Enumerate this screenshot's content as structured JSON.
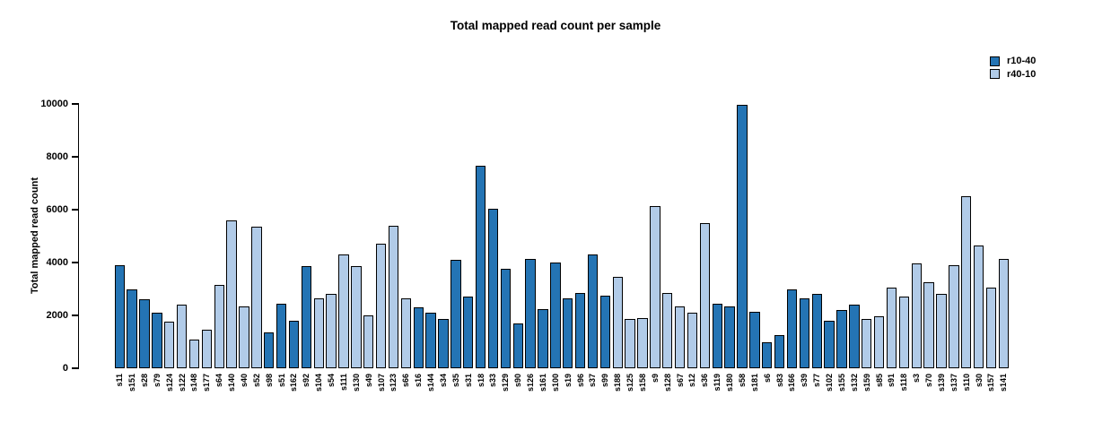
{
  "chart_data": {
    "type": "bar",
    "title": "Total mapped read count per sample",
    "xlabel": "",
    "ylabel": "Total mapped read count",
    "ylim": [
      0,
      10000
    ],
    "y_ticks": [
      0,
      2000,
      4000,
      6000,
      8000,
      10000
    ],
    "grid": false,
    "legend_position": "top-right",
    "legend": [
      {
        "label": "r10-40",
        "color": "#2474b4"
      },
      {
        "label": "r40-10",
        "color": "#b1cbe8"
      }
    ],
    "samples": [
      {
        "id": "s11",
        "group": "r10-40",
        "value": 3900
      },
      {
        "id": "s151",
        "group": "r10-40",
        "value": 3000
      },
      {
        "id": "s28",
        "group": "r10-40",
        "value": 2600
      },
      {
        "id": "s79",
        "group": "r10-40",
        "value": 2100
      },
      {
        "id": "s124",
        "group": "r40-10",
        "value": 1750
      },
      {
        "id": "s122",
        "group": "r40-10",
        "value": 2400
      },
      {
        "id": "s148",
        "group": "r40-10",
        "value": 1100
      },
      {
        "id": "s177",
        "group": "r40-10",
        "value": 1450
      },
      {
        "id": "s64",
        "group": "r40-10",
        "value": 3150
      },
      {
        "id": "s140",
        "group": "r40-10",
        "value": 5600
      },
      {
        "id": "s40",
        "group": "r40-10",
        "value": 2350
      },
      {
        "id": "s52",
        "group": "r40-10",
        "value": 5350
      },
      {
        "id": "s98",
        "group": "r10-40",
        "value": 1350
      },
      {
        "id": "s51",
        "group": "r10-40",
        "value": 2450
      },
      {
        "id": "s162",
        "group": "r10-40",
        "value": 1800
      },
      {
        "id": "s92",
        "group": "r10-40",
        "value": 3850
      },
      {
        "id": "s104",
        "group": "r40-10",
        "value": 2650
      },
      {
        "id": "s54",
        "group": "r40-10",
        "value": 2800
      },
      {
        "id": "s111",
        "group": "r40-10",
        "value": 4300
      },
      {
        "id": "s130",
        "group": "r40-10",
        "value": 3850
      },
      {
        "id": "s49",
        "group": "r40-10",
        "value": 2000
      },
      {
        "id": "s107",
        "group": "r40-10",
        "value": 4700
      },
      {
        "id": "s123",
        "group": "r40-10",
        "value": 5400
      },
      {
        "id": "s66",
        "group": "r40-10",
        "value": 2650
      },
      {
        "id": "s16",
        "group": "r10-40",
        "value": 2300
      },
      {
        "id": "s144",
        "group": "r10-40",
        "value": 2100
      },
      {
        "id": "s34",
        "group": "r10-40",
        "value": 1850
      },
      {
        "id": "s35",
        "group": "r10-40",
        "value": 4100
      },
      {
        "id": "s31",
        "group": "r10-40",
        "value": 2700
      },
      {
        "id": "s18",
        "group": "r10-40",
        "value": 7650
      },
      {
        "id": "s33",
        "group": "r10-40",
        "value": 6050
      },
      {
        "id": "s129",
        "group": "r10-40",
        "value": 3750
      },
      {
        "id": "s90",
        "group": "r10-40",
        "value": 1700
      },
      {
        "id": "s126",
        "group": "r10-40",
        "value": 4150
      },
      {
        "id": "s161",
        "group": "r10-40",
        "value": 2250
      },
      {
        "id": "s100",
        "group": "r10-40",
        "value": 4000
      },
      {
        "id": "s19",
        "group": "r10-40",
        "value": 2650
      },
      {
        "id": "s96",
        "group": "r10-40",
        "value": 2850
      },
      {
        "id": "s37",
        "group": "r10-40",
        "value": 4300
      },
      {
        "id": "s99",
        "group": "r10-40",
        "value": 2750
      },
      {
        "id": "s188",
        "group": "r40-10",
        "value": 3450
      },
      {
        "id": "s125",
        "group": "r40-10",
        "value": 1850
      },
      {
        "id": "s158",
        "group": "r40-10",
        "value": 1900
      },
      {
        "id": "s9",
        "group": "r40-10",
        "value": 6150
      },
      {
        "id": "s128",
        "group": "r40-10",
        "value": 2850
      },
      {
        "id": "s67",
        "group": "r40-10",
        "value": 2350
      },
      {
        "id": "s12",
        "group": "r40-10",
        "value": 2100
      },
      {
        "id": "s36",
        "group": "r40-10",
        "value": 5500
      },
      {
        "id": "s119",
        "group": "r10-40",
        "value": 2450
      },
      {
        "id": "s180",
        "group": "r10-40",
        "value": 2350
      },
      {
        "id": "s58",
        "group": "r10-40",
        "value": 9950
      },
      {
        "id": "s181",
        "group": "r10-40",
        "value": 2150
      },
      {
        "id": "s6",
        "group": "r10-40",
        "value": 1000
      },
      {
        "id": "s83",
        "group": "r10-40",
        "value": 1250
      },
      {
        "id": "s166",
        "group": "r10-40",
        "value": 3000
      },
      {
        "id": "s39",
        "group": "r10-40",
        "value": 2650
      },
      {
        "id": "s77",
        "group": "r10-40",
        "value": 2800
      },
      {
        "id": "s102",
        "group": "r10-40",
        "value": 1800
      },
      {
        "id": "s155",
        "group": "r10-40",
        "value": 2200
      },
      {
        "id": "s132",
        "group": "r10-40",
        "value": 2400
      },
      {
        "id": "s159",
        "group": "r40-10",
        "value": 1850
      },
      {
        "id": "s85",
        "group": "r40-10",
        "value": 1950
      },
      {
        "id": "s91",
        "group": "r40-10",
        "value": 3050
      },
      {
        "id": "s118",
        "group": "r40-10",
        "value": 2700
      },
      {
        "id": "s3",
        "group": "r40-10",
        "value": 3950
      },
      {
        "id": "s70",
        "group": "r40-10",
        "value": 3250
      },
      {
        "id": "s139",
        "group": "r40-10",
        "value": 2800
      },
      {
        "id": "s137",
        "group": "r40-10",
        "value": 3900
      },
      {
        "id": "s110",
        "group": "r40-10",
        "value": 6500
      },
      {
        "id": "s30",
        "group": "r40-10",
        "value": 4650
      },
      {
        "id": "s157",
        "group": "r40-10",
        "value": 3050
      },
      {
        "id": "s141",
        "group": "r40-10",
        "value": 4150
      }
    ]
  }
}
